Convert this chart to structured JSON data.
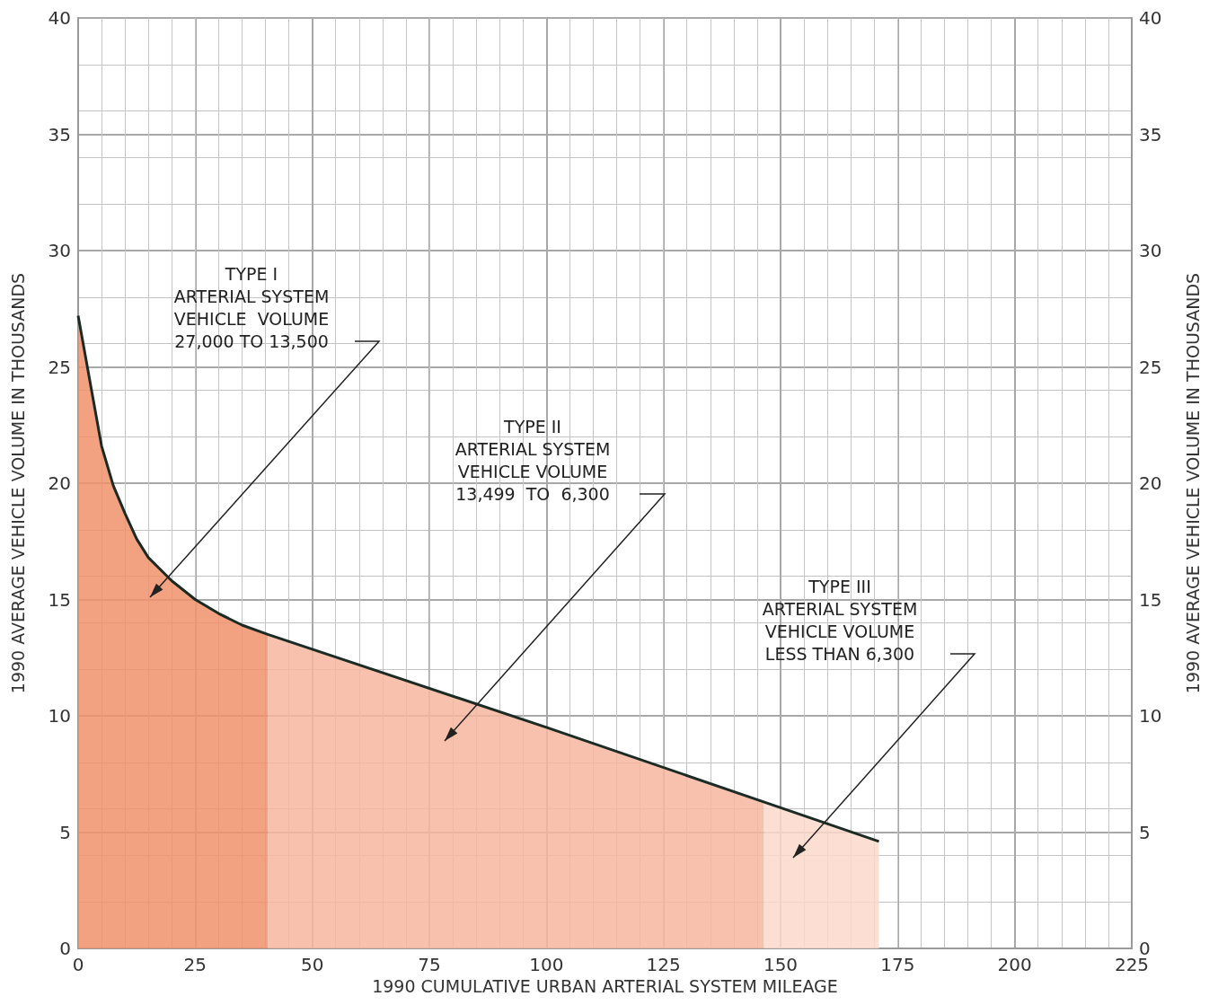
{
  "chart_data": {
    "type": "line",
    "xlabel": "1990 CUMULATIVE URBAN ARTERIAL SYSTEM MILEAGE",
    "ylabel": "1990 AVERAGE VEHICLE VOLUME IN THOUSANDS",
    "y2label": "1990 AVERAGE VEHICLE VOLUME IN THOUSANDS",
    "xlim": [
      0,
      225
    ],
    "xticks": [
      0,
      25,
      50,
      75,
      100,
      125,
      150,
      175,
      200,
      225
    ],
    "ylim": [
      0,
      40
    ],
    "yticks": [
      0,
      5,
      10,
      15,
      20,
      25,
      30,
      35,
      40
    ],
    "y2lim": [
      0,
      40
    ],
    "y2ticks": [
      0,
      5,
      10,
      15,
      20,
      25,
      30,
      35,
      40
    ],
    "grid": true,
    "series": [
      {
        "type": "area",
        "color": "#f1926b",
        "x": [
          0,
          2.5,
          5,
          7.5,
          10,
          12.5,
          15,
          20,
          25,
          30,
          35,
          40.5
        ],
        "values": [
          27.2,
          24.4,
          21.6,
          19.9,
          18.7,
          17.6,
          16.8,
          15.8,
          15.0,
          14.4,
          13.9,
          13.5
        ]
      },
      {
        "type": "area",
        "color": "#f6b6a0",
        "x": [
          40.5,
          100,
          146.4
        ],
        "values": [
          13.5,
          9.5,
          6.3
        ]
      },
      {
        "type": "area",
        "color": "#fbd8ca",
        "x": [
          146.4,
          171
        ],
        "values": [
          6.3,
          4.6
        ]
      },
      {
        "color": "#1c2a24",
        "x": [
          0,
          2.5,
          5,
          7.5,
          10,
          12.5,
          15,
          20,
          25,
          30,
          35,
          40.5,
          100,
          146.4,
          171
        ],
        "values": [
          27.2,
          24.4,
          21.6,
          19.9,
          18.7,
          17.6,
          16.8,
          15.8,
          15.0,
          14.4,
          13.9,
          13.5,
          9.5,
          6.3,
          4.6
        ]
      }
    ],
    "annotations": [
      "TYPE I\nARTERIAL SYSTEM\nVEHICLE  VOLUME\n27,000 TO 13,500",
      "TYPE II\nARTERIAL SYSTEM\nVEHICLE VOLUME\n13,499  TO  6,300",
      "TYPE III\nARTERIAL SYSTEM\nVEHICLE VOLUME\nLESS THAN 6,300"
    ]
  }
}
